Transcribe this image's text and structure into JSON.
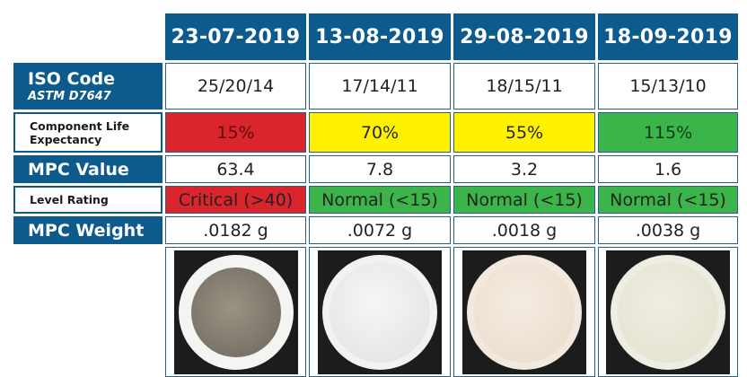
{
  "dates": [
    "23-07-2019",
    "13-08-2019",
    "29-08-2019",
    "18-09-2019"
  ],
  "labels": {
    "iso_code": "ISO Code",
    "iso_sub": "ASTM D7647",
    "life_line1": "Component Life",
    "life_line2": "Expectancy",
    "mpc_value": "MPC Value",
    "level_rating": "Level Rating",
    "mpc_weight": "MPC Weight"
  },
  "iso_codes": [
    "25/20/14",
    "17/14/11",
    "18/15/11",
    "15/13/10"
  ],
  "life_expectancy": [
    "15%",
    "70%",
    "55%",
    "115%"
  ],
  "mpc_values": [
    "63.4",
    "7.8",
    "3.2",
    "1.6"
  ],
  "level_ratings": [
    "Critical (>40)",
    "Normal (<15)",
    "Normal (<15)",
    "Normal (<15)"
  ],
  "mpc_weights": [
    ".0182 g",
    ".0072 g",
    ".0018 g",
    ".0038 g"
  ],
  "colors": {
    "header_blue": "#0d5a8d",
    "red": "#d9252b",
    "yellow": "#fff200",
    "green": "#3bb44a",
    "patch_dark": "#8b8376",
    "patch_white": "#eeeeee",
    "patch_cream": "#f0e6d6",
    "patch_ivory": "#eceadb"
  }
}
